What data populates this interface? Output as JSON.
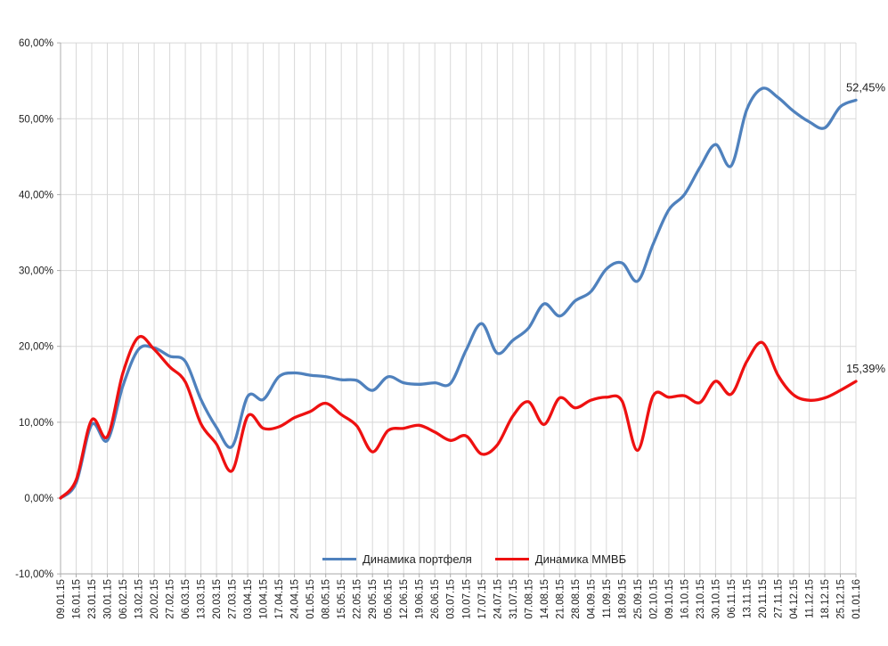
{
  "chart_data": {
    "type": "line",
    "title": "",
    "xlabel": "",
    "ylabel": "",
    "grid": true,
    "legend_position": "bottom",
    "ylim": [
      -10,
      60
    ],
    "y_ticks": [
      {
        "value": 60,
        "label": "60,00%"
      },
      {
        "value": 50,
        "label": "50,00%"
      },
      {
        "value": 40,
        "label": "40,00%"
      },
      {
        "value": 30,
        "label": "30,00%"
      },
      {
        "value": 20,
        "label": "20,00%"
      },
      {
        "value": 10,
        "label": "10,00%"
      },
      {
        "value": 0,
        "label": "0,00%"
      },
      {
        "value": -10,
        "label": "-10,00%"
      }
    ],
    "x_labels": [
      "09.01.15",
      "16.01.15",
      "23.01.15",
      "30.01.15",
      "06.02.15",
      "13.02.15",
      "20.02.15",
      "27.02.15",
      "06.03.15",
      "13.03.15",
      "20.03.15",
      "27.03.15",
      "03.04.15",
      "10.04.15",
      "17.04.15",
      "24.04.15",
      "01.05.15",
      "08.05.15",
      "15.05.15",
      "22.05.15",
      "29.05.15",
      "05.06.15",
      "12.06.15",
      "19.06.15",
      "26.06.15",
      "03.07.15",
      "10.07.15",
      "17.07.15",
      "24.07.15",
      "31.07.15",
      "07.08.15",
      "14.08.15",
      "21.08.15",
      "28.08.15",
      "04.09.15",
      "11.09.15",
      "18.09.15",
      "25.09.15",
      "02.10.15",
      "09.10.15",
      "16.10.15",
      "23.10.15",
      "30.10.15",
      "06.11.15",
      "13.11.15",
      "20.11.15",
      "27.11.15",
      "04.12.15",
      "11.12.15",
      "18.12.15",
      "25.12.15",
      "01.01.16"
    ],
    "series": [
      {
        "name": "Динамика портфеля",
        "color": "#4F81BD",
        "end_label": "52,45%",
        "values": [
          0.0,
          2.0,
          9.7,
          7.6,
          14.8,
          19.6,
          19.8,
          18.7,
          18.0,
          13.0,
          9.3,
          6.8,
          13.4,
          13.0,
          16.0,
          16.5,
          16.2,
          16.0,
          15.6,
          15.5,
          14.2,
          16.0,
          15.2,
          15.0,
          15.2,
          15.1,
          19.5,
          23.0,
          19.1,
          20.8,
          22.4,
          25.6,
          24.0,
          26.0,
          27.2,
          30.2,
          31.0,
          28.6,
          33.5,
          38.0,
          40.0,
          43.6,
          46.6,
          43.8,
          51.2,
          54.0,
          52.8,
          51.0,
          49.6,
          48.8,
          51.6,
          52.45
        ]
      },
      {
        "name": "Динамика ММВБ",
        "color": "#EE1111",
        "end_label": "15,39%",
        "values": [
          0.0,
          2.4,
          10.3,
          8.1,
          16.5,
          21.2,
          19.6,
          17.3,
          15.3,
          9.8,
          7.1,
          3.6,
          10.8,
          9.2,
          9.4,
          10.6,
          11.4,
          12.5,
          11.0,
          9.5,
          6.1,
          8.9,
          9.2,
          9.6,
          8.7,
          7.6,
          8.2,
          5.8,
          7.0,
          10.8,
          12.7,
          9.7,
          13.2,
          11.9,
          12.9,
          13.3,
          12.8,
          6.3,
          13.5,
          13.3,
          13.5,
          12.6,
          15.4,
          13.7,
          18.0,
          20.5,
          16.2,
          13.6,
          12.9,
          13.2,
          14.2,
          15.39
        ]
      }
    ],
    "colors": {
      "grid": "#D8D8D8",
      "axis": "#ACACAC",
      "text": "#1f1f1f",
      "background": "#FFFFFF"
    }
  }
}
